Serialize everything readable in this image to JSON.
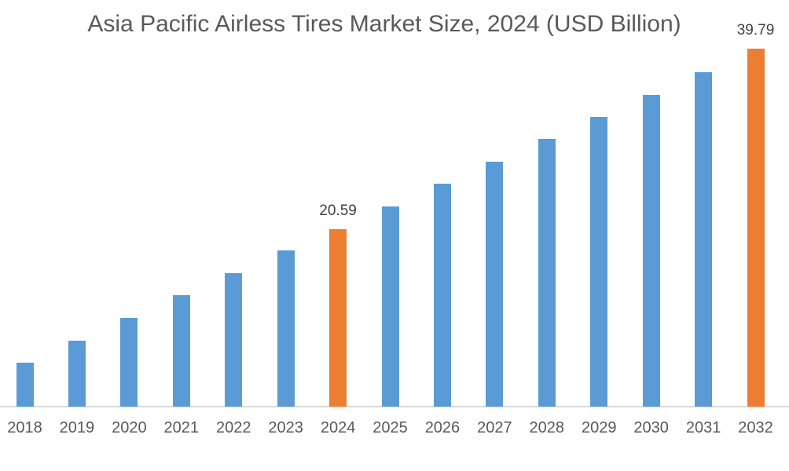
{
  "chart_data": {
    "type": "bar",
    "title": "Asia Pacific Airless Tires Market Size, 2024 (USD Billion)",
    "categories": [
      "2018",
      "2019",
      "2020",
      "2021",
      "2022",
      "2023",
      "2024",
      "2025",
      "2026",
      "2027",
      "2028",
      "2029",
      "2030",
      "2031",
      "2032"
    ],
    "values": [
      6.44,
      8.78,
      11.17,
      13.59,
      15.95,
      18.32,
      20.59,
      22.98,
      25.4,
      27.74,
      30.21,
      32.49,
      34.87,
      37.24,
      39.79
    ],
    "data_labels": {
      "2024": "20.59",
      "2032": "39.79"
    },
    "highlight_categories": [
      "2024",
      "2032"
    ],
    "xlabel": "",
    "ylabel": "",
    "ylim": [
      1.75,
      39.79
    ],
    "grid": false,
    "legend": false,
    "colors": {
      "bar": "#5B9BD5",
      "bar_highlight": "#ED7D31",
      "axis_line": "#D9D9D9",
      "title": "#595959",
      "tick_label": "#595959",
      "data_label": "#404040"
    }
  }
}
